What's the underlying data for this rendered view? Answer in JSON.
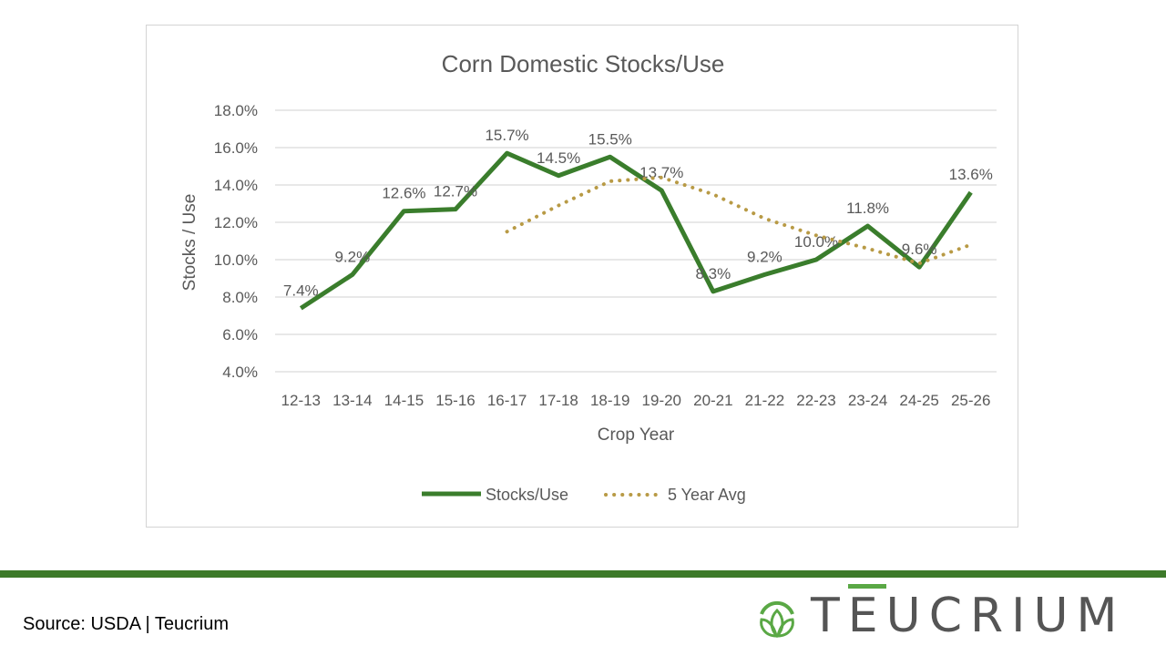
{
  "chart_data": {
    "type": "line",
    "title": "Corn Domestic Stocks/Use",
    "xlabel": "Crop Year",
    "ylabel": "Stocks / Use",
    "ylim": [
      4.0,
      18.0
    ],
    "yticks": [
      "4.0%",
      "6.0%",
      "8.0%",
      "10.0%",
      "12.0%",
      "14.0%",
      "16.0%",
      "18.0%"
    ],
    "grid": true,
    "legend": "bottom",
    "categories": [
      "12-13",
      "13-14",
      "14-15",
      "15-16",
      "16-17",
      "17-18",
      "18-19",
      "19-20",
      "20-21",
      "21-22",
      "22-23",
      "23-24",
      "24-25",
      "25-26"
    ],
    "series": [
      {
        "name": "Stocks/Use",
        "color": "#3a7d2c",
        "style": "solid",
        "values": [
          7.4,
          9.2,
          12.6,
          12.7,
          15.7,
          14.5,
          15.5,
          13.7,
          8.3,
          9.2,
          10.0,
          11.8,
          9.6,
          13.6
        ],
        "labels": [
          "7.4%",
          "9.2%",
          "12.6%",
          "12.7%",
          "15.7%",
          "14.5%",
          "15.5%",
          "13.7%",
          "8.3%",
          "9.2%",
          "10.0%",
          "11.8%",
          "9.6%",
          "13.6%"
        ]
      },
      {
        "name": "5 Year Avg",
        "color": "#b89a45",
        "style": "dotted",
        "values": [
          null,
          null,
          null,
          null,
          11.5,
          12.9,
          14.2,
          14.4,
          13.5,
          12.2,
          11.3,
          10.6,
          9.8,
          10.8
        ]
      }
    ]
  },
  "footer": {
    "source": "Source: USDA | Teucrium",
    "logo": "TEUCRIUM"
  },
  "colors": {
    "band": "#3d7a2a",
    "logo_green": "#5aa845"
  }
}
